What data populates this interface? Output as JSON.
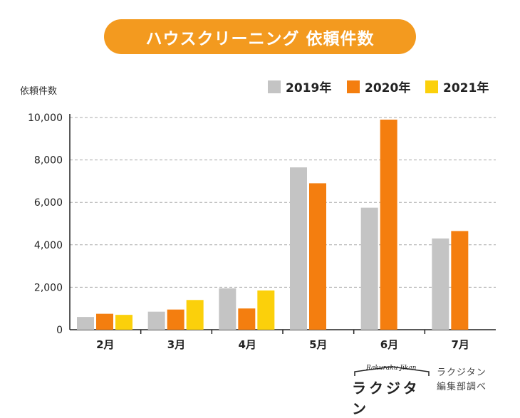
{
  "chart_data": {
    "type": "bar",
    "title": "ハウスクリーニング 依頼件数",
    "ylabel": "依頼件数",
    "xlabel": "",
    "categories": [
      "2月",
      "3月",
      "4月",
      "5月",
      "6月",
      "7月"
    ],
    "series": [
      {
        "name": "2019年",
        "color": "#c4c4c4",
        "values": [
          600,
          850,
          1950,
          7650,
          5750,
          4300
        ]
      },
      {
        "name": "2020年",
        "color": "#f47e0f",
        "values": [
          750,
          950,
          1000,
          6900,
          9900,
          4650
        ]
      },
      {
        "name": "2021年",
        "color": "#fbd00b",
        "values": [
          700,
          1400,
          1850,
          null,
          null,
          null
        ]
      }
    ],
    "ylim": [
      0,
      10000
    ],
    "yticks": [
      0,
      2000,
      4000,
      6000,
      8000,
      10000
    ],
    "ytick_labels": [
      "0",
      "2,000",
      "4,000",
      "6,000",
      "8,000",
      "10,000"
    ],
    "grid": true,
    "legend": "top-right"
  },
  "credit": {
    "logo_script": "Rakuraku Jikan",
    "logo_text": "ラクジタン",
    "line1": "ラクジタン",
    "line2": "編集部調べ"
  }
}
